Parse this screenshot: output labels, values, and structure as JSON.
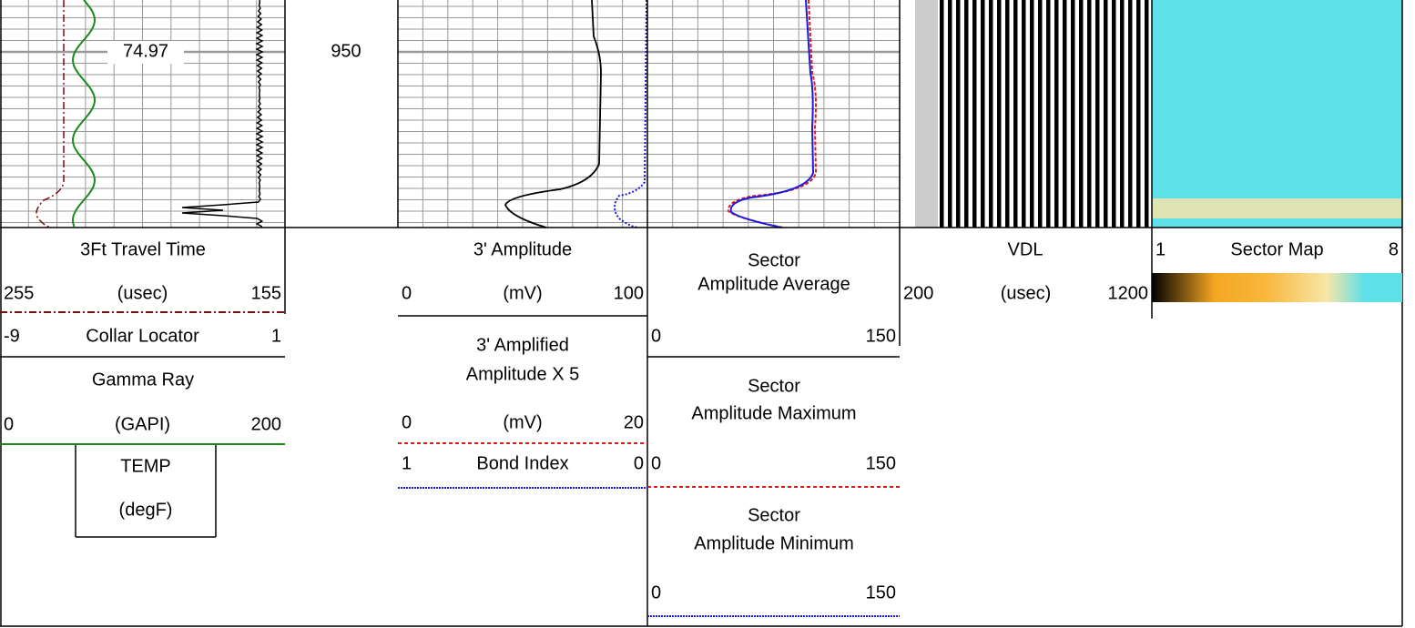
{
  "depth_label": "950",
  "annotation": "74.97",
  "travel_time": {
    "title": "3Ft Travel Time",
    "scale": [
      "255",
      "(usec)",
      "155"
    ]
  },
  "collar": {
    "scale": [
      "-9",
      "Collar Locator",
      "1"
    ]
  },
  "gamma": {
    "title": "Gamma Ray",
    "scale": [
      "0",
      "(GAPI)",
      "200"
    ]
  },
  "temp": {
    "title": "TEMP",
    "unit": "(degF)"
  },
  "amplitude": {
    "title": "3' Amplitude",
    "scale": [
      "0",
      "(mV)",
      "100"
    ]
  },
  "amplified": {
    "title": [
      "3' Amplified",
      "Amplitude X 5"
    ],
    "scale": [
      "0",
      "(mV)",
      "20"
    ]
  },
  "bond": {
    "scale": [
      "1",
      "Bond Index",
      "0"
    ]
  },
  "sector_avg": {
    "title": [
      "Sector",
      "Amplitude Average"
    ],
    "scale": [
      "0",
      "150"
    ]
  },
  "sector_max": {
    "title": [
      "Sector",
      "Amplitude Maximum"
    ],
    "scale": [
      "0",
      "150"
    ]
  },
  "sector_min": {
    "title": [
      "Sector",
      "Amplitude Minimum"
    ],
    "scale": [
      "0",
      "150"
    ]
  },
  "vdl": {
    "title": "VDL",
    "scale": [
      "200",
      "(usec)",
      "1200"
    ]
  },
  "sector_map": {
    "scale": [
      "1",
      "Sector Map",
      "8"
    ]
  }
}
